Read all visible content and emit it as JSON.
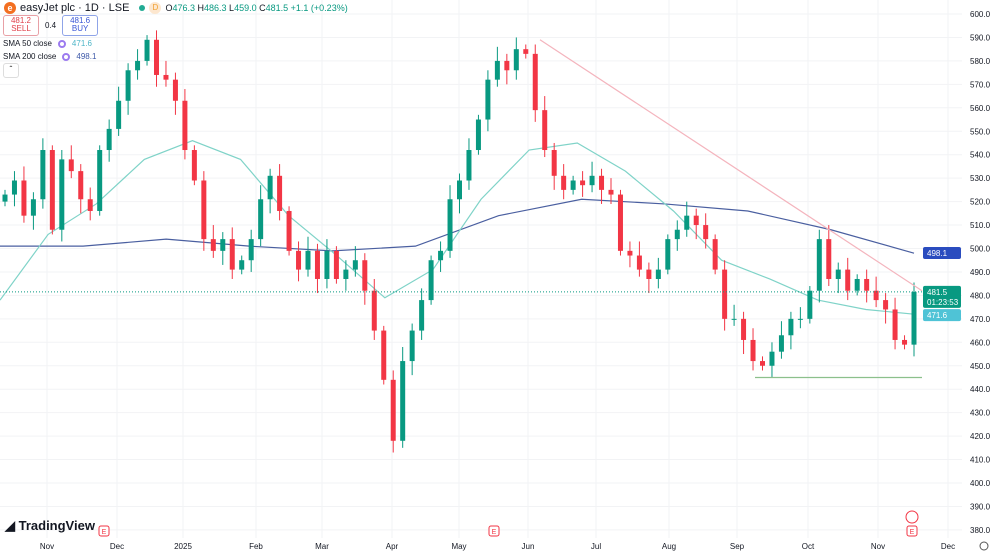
{
  "header": {
    "symbol": "easyJet plc · 1D · LSE",
    "logo_letter": "e",
    "badge": "D",
    "open_label": "O",
    "open": "476.3",
    "high_label": "H",
    "high": "486.3",
    "low_label": "L",
    "low": "459.0",
    "close_label": "C",
    "close": "481.5",
    "change": "+1.1 (+0.23%)"
  },
  "trade": {
    "sell_price": "481.2",
    "sell_label": "SELL",
    "spread": "0.4",
    "buy_price": "481.6",
    "buy_label": "BUY"
  },
  "indicators": [
    {
      "label": "SMA 50 close",
      "value": "471.6",
      "color": "#7fd3c8"
    },
    {
      "label": "SMA 200 close",
      "value": "498.1",
      "color": "#3d58a8"
    }
  ],
  "collapse_icon": "chevron-up-icon",
  "brand": "TradingView",
  "chart_data": {
    "type": "candlestick",
    "ylim": [
      380,
      600
    ],
    "yticks": [
      380,
      390,
      400,
      410,
      420,
      430,
      440,
      450,
      460,
      470,
      480,
      490,
      500,
      510,
      520,
      530,
      540,
      550,
      560,
      570,
      580,
      590,
      600
    ],
    "xticks": [
      "Nov",
      "Dec",
      "2025",
      "Feb",
      "Mar",
      "Apr",
      "May",
      "Jun",
      "Jul",
      "Aug",
      "Sep",
      "Oct",
      "Nov",
      "Dec"
    ],
    "closes": [
      523,
      529,
      514,
      521,
      542,
      508,
      538,
      533,
      521,
      516,
      542,
      551,
      563,
      576,
      580,
      589,
      574,
      572,
      563,
      542,
      529,
      504,
      499,
      504,
      491,
      495,
      504,
      521,
      531,
      516,
      499,
      491,
      499,
      487,
      499,
      487,
      491,
      495,
      482,
      465,
      444,
      418,
      452,
      465,
      478,
      495,
      499,
      521,
      529,
      542,
      555,
      572,
      580,
      576,
      585,
      583,
      559,
      542,
      531,
      525,
      529,
      527,
      531,
      525,
      523,
      499,
      497,
      491,
      487,
      491,
      504,
      508,
      514,
      510,
      504,
      491,
      470,
      470,
      461,
      452,
      450,
      456,
      463,
      470,
      470,
      482,
      504,
      487,
      491,
      482,
      487,
      482,
      478,
      474,
      461,
      459,
      481.5
    ],
    "sma50": {
      "values": [
        478,
        506,
        519,
        538,
        546,
        538,
        514,
        497,
        479,
        491,
        521,
        542,
        545,
        533,
        516,
        495,
        487,
        478,
        474,
        472
      ]
    },
    "sma200": {
      "values": [
        501,
        501,
        504,
        501,
        499,
        501,
        514,
        521,
        519,
        516,
        508,
        498
      ]
    },
    "trendline": {
      "from": 589,
      "to": 482
    },
    "support": 445,
    "last_price": "481.5",
    "countdown": "01:23:53",
    "sma50_label": "471.6",
    "sma200_label": "498.1",
    "earnings_marker": "E",
    "up_color": "#089981",
    "down_color": "#f23645"
  }
}
